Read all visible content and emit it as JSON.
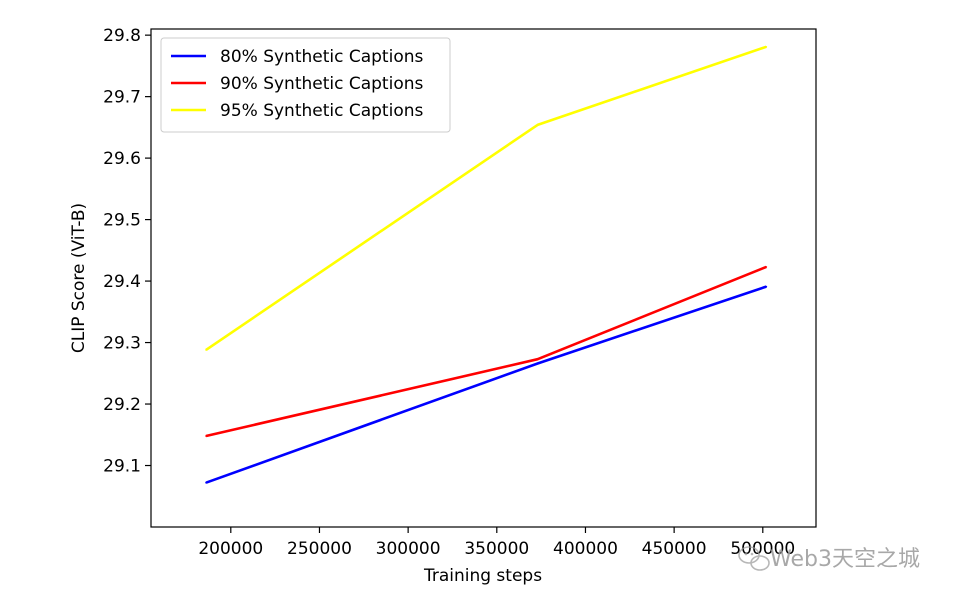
{
  "chart_data": {
    "type": "line",
    "xlabel": "Training steps",
    "ylabel": "CLIP Score (ViT-B)",
    "xlim": [
      155000,
      530000
    ],
    "ylim": [
      29.0,
      29.81
    ],
    "xticks": [
      200000,
      250000,
      300000,
      350000,
      400000,
      450000,
      500000
    ],
    "xtick_labels": [
      "200000",
      "250000",
      "300000",
      "350000",
      "400000",
      "450000",
      "500000"
    ],
    "yticks": [
      29.1,
      29.2,
      29.3,
      29.4,
      29.5,
      29.6,
      29.7,
      29.8
    ],
    "ytick_labels": [
      "29.1",
      "29.2",
      "29.3",
      "29.4",
      "29.5",
      "29.6",
      "29.7",
      "29.8"
    ],
    "grid": false,
    "legend_position": "top-left",
    "series": [
      {
        "name": "80% Synthetic Captions",
        "color": "#0000ff",
        "x": [
          186000,
          373000,
          502000
        ],
        "y": [
          29.072,
          29.266,
          29.391
        ]
      },
      {
        "name": "90% Synthetic Captions",
        "color": "#ff0000",
        "x": [
          186000,
          373000,
          502000
        ],
        "y": [
          29.148,
          29.273,
          29.423
        ]
      },
      {
        "name": "95% Synthetic Captions",
        "color": "#ffff00",
        "x": [
          186000,
          373000,
          502000
        ],
        "y": [
          29.288,
          29.654,
          29.781
        ]
      }
    ]
  },
  "watermark": {
    "text": "Web3天空之城",
    "icon": "wechat-icon"
  }
}
